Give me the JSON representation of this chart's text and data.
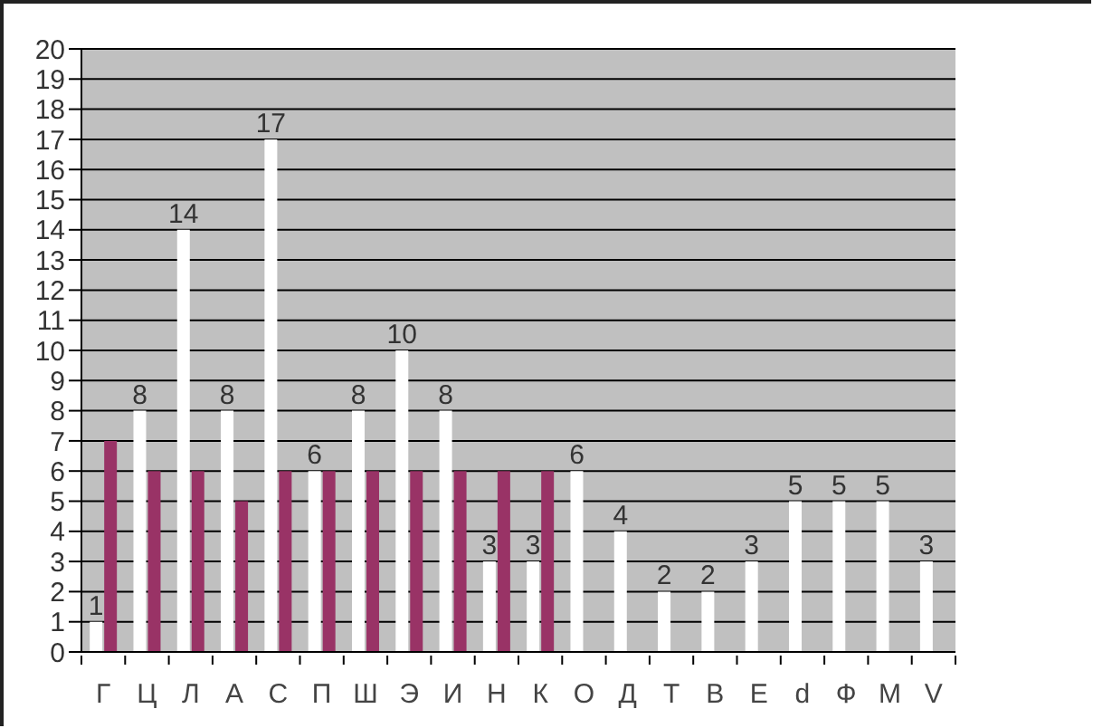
{
  "chart_data": {
    "type": "bar",
    "categories": [
      "Г",
      "Ц",
      "Л",
      "А",
      "С",
      "П",
      "Ш",
      "Э",
      "И",
      "Н",
      "К",
      "О",
      "Д",
      "Т",
      "В",
      "Е",
      "d",
      "Ф",
      "М",
      "V"
    ],
    "series": [
      {
        "color": "#ffffff",
        "data_labels": true,
        "values": [
          1,
          8,
          14,
          8,
          17,
          6,
          8,
          10,
          8,
          3,
          3,
          6,
          4,
          2,
          2,
          3,
          5,
          5,
          5,
          3
        ]
      },
      {
        "color": "#993366",
        "values": [
          7,
          6,
          6,
          5,
          6,
          6,
          6,
          6,
          6,
          6,
          6,
          null,
          null,
          null,
          null,
          null,
          null,
          null,
          null,
          null
        ]
      }
    ],
    "ylim": [
      0,
      20
    ],
    "yticks": [
      0,
      1,
      2,
      3,
      4,
      5,
      6,
      7,
      8,
      9,
      10,
      11,
      12,
      13,
      14,
      15,
      16,
      17,
      18,
      19,
      20
    ],
    "grid": "y",
    "legend": false
  }
}
